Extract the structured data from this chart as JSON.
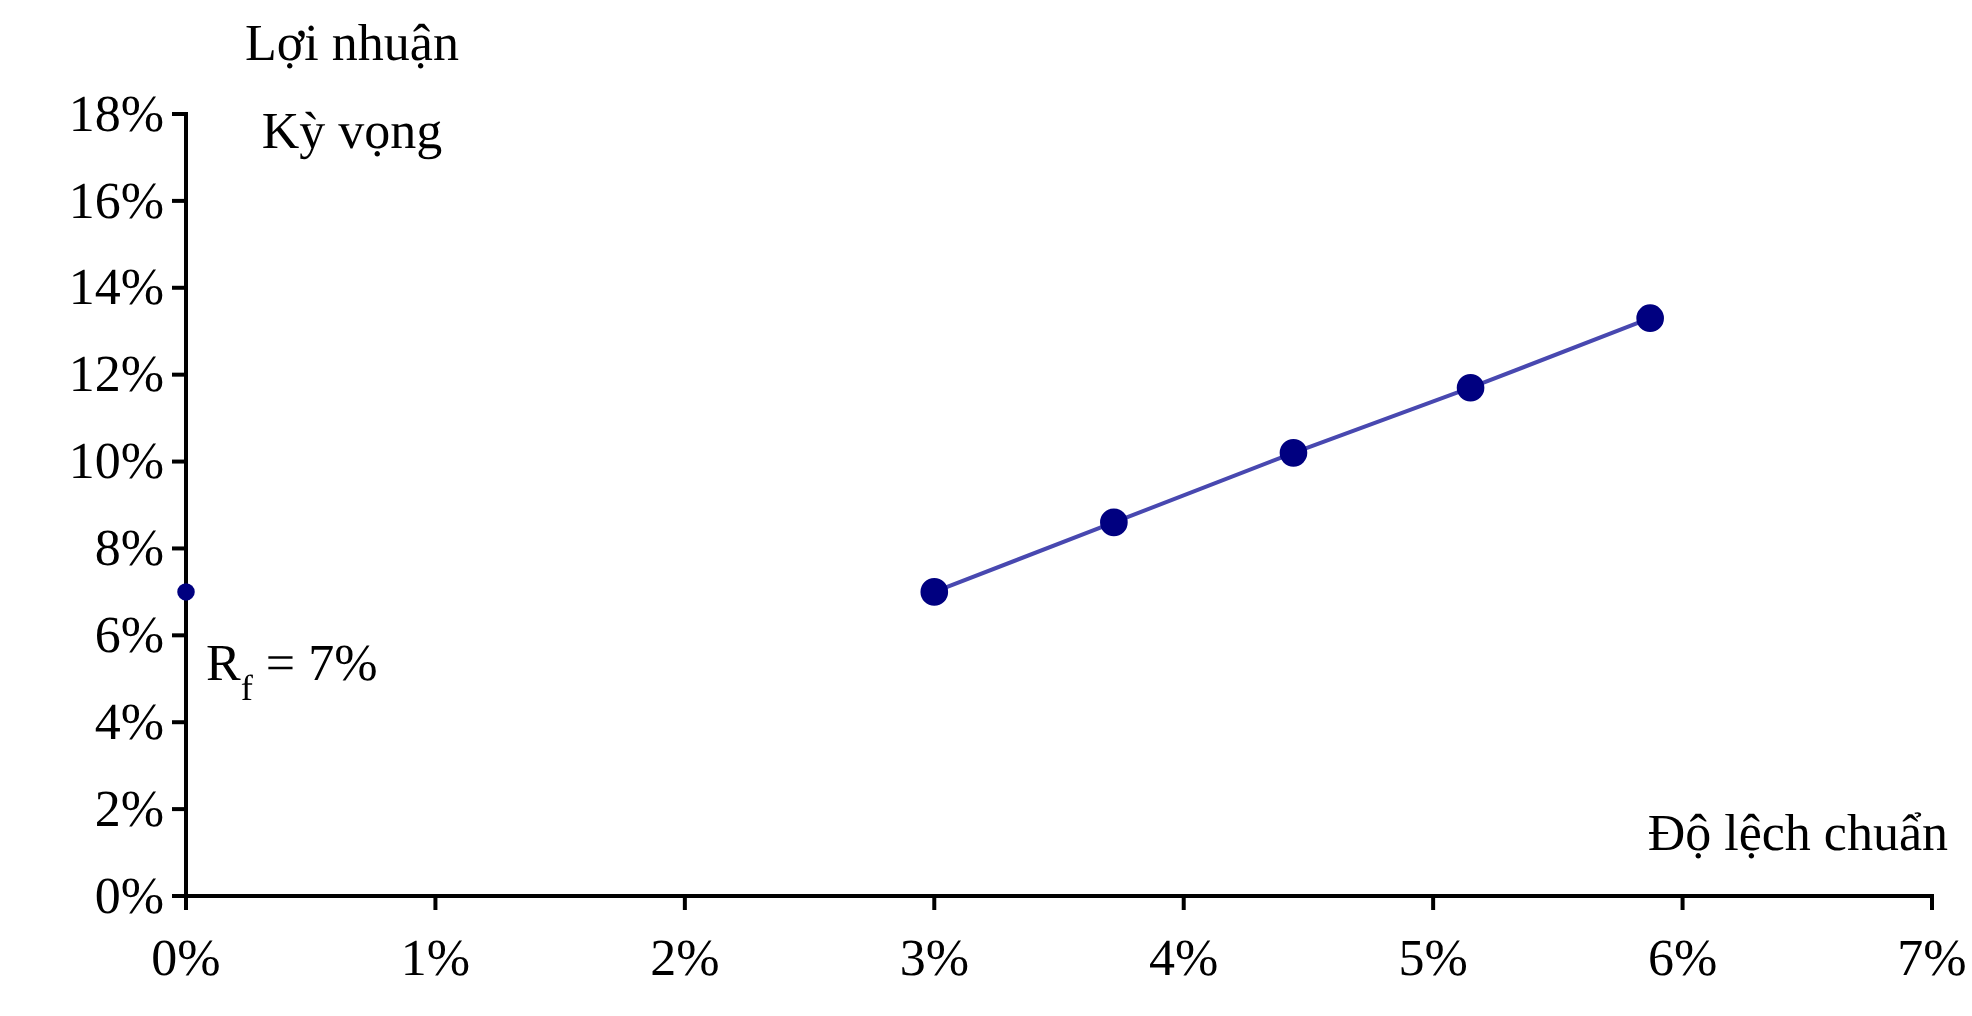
{
  "chart_data": {
    "type": "line",
    "ylabel": "Lợi nhuận\nKỳ vọng",
    "xlabel": "Độ lệch chuẩn",
    "xlim": [
      0,
      7
    ],
    "ylim": [
      0,
      18
    ],
    "xticks": [
      {
        "value": 0,
        "label": "0%"
      },
      {
        "value": 1,
        "label": "1%"
      },
      {
        "value": 2,
        "label": "2%"
      },
      {
        "value": 3,
        "label": "3%"
      },
      {
        "value": 4,
        "label": "4%"
      },
      {
        "value": 5,
        "label": "5%"
      },
      {
        "value": 6,
        "label": "6%"
      },
      {
        "value": 7,
        "label": "7%"
      }
    ],
    "yticks": [
      {
        "value": 0,
        "label": "0%"
      },
      {
        "value": 2,
        "label": "2%"
      },
      {
        "value": 4,
        "label": "4%"
      },
      {
        "value": 6,
        "label": "6%"
      },
      {
        "value": 8,
        "label": "8%"
      },
      {
        "value": 10,
        "label": "10%"
      },
      {
        "value": 12,
        "label": "12%"
      },
      {
        "value": 14,
        "label": "14%"
      },
      {
        "value": 16,
        "label": "16%"
      },
      {
        "value": 18,
        "label": "18%"
      }
    ],
    "series": [
      {
        "type": "scatter",
        "color": "#000080",
        "x": [
          0
        ],
        "values": [
          7
        ]
      },
      {
        "color": "#000080",
        "x": [
          3.0,
          3.72,
          4.44,
          5.15,
          5.87
        ],
        "values": [
          7.0,
          8.6,
          10.2,
          11.7,
          13.3
        ]
      }
    ],
    "annotations": [
      {
        "text": "R$_{f}$ = 7%",
        "x": 0,
        "y": 7
      }
    ],
    "marker": "circle",
    "line_style": "solid",
    "grid": false
  }
}
